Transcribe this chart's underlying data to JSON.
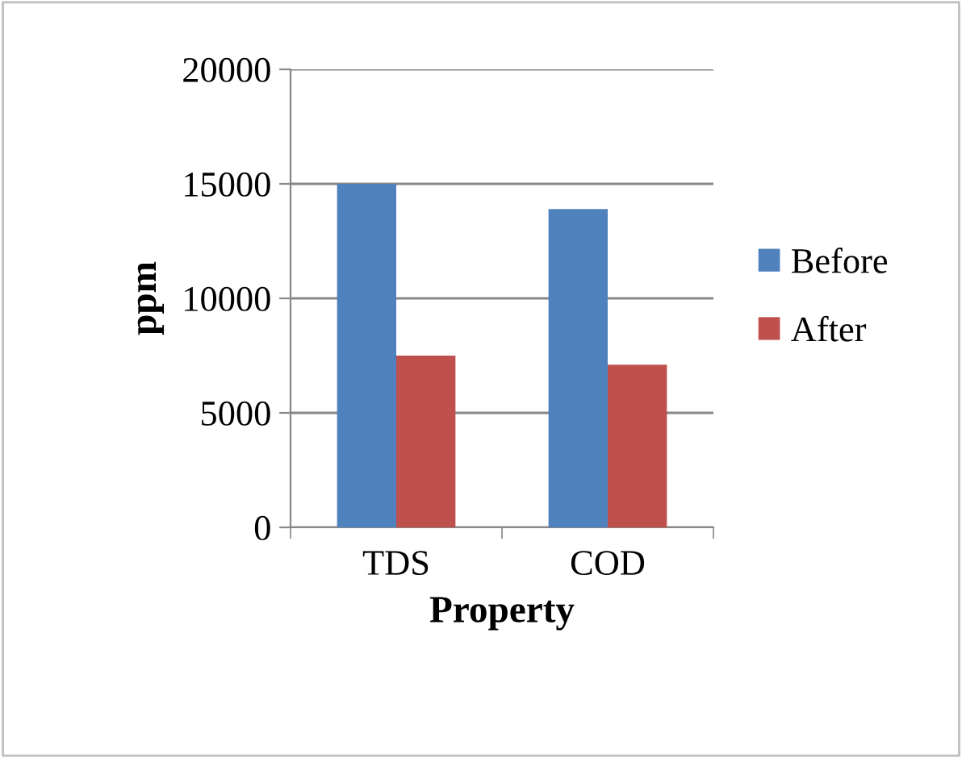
{
  "chart_data": {
    "type": "bar",
    "xlabel": "Property",
    "ylabel": "ppm",
    "categories": [
      "TDS",
      "COD"
    ],
    "series": [
      {
        "name": "Before",
        "color": "#4f81bd",
        "values": [
          15000,
          13900
        ]
      },
      {
        "name": "After",
        "color": "#c0504d",
        "values": [
          7500,
          7100
        ]
      }
    ],
    "ylim": [
      0,
      20000
    ],
    "yticks": [
      0,
      5000,
      10000,
      15000,
      20000
    ],
    "grid": "y",
    "legend": "right"
  }
}
